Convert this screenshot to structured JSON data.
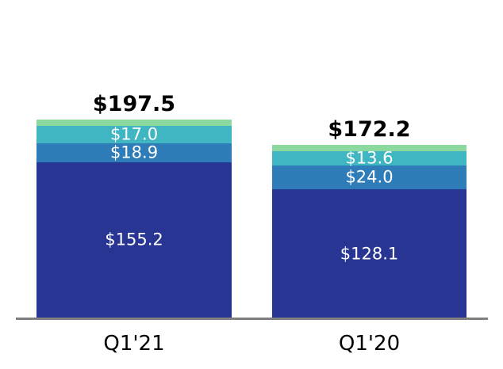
{
  "chart_data": {
    "type": "bar",
    "stacked": true,
    "title": "",
    "xlabel": "",
    "ylabel": "",
    "legend": false,
    "grid": false,
    "background_color": "#ffffff",
    "axis_line_color": "#7f7f7f",
    "total_label_color": "#000000",
    "value_label_color": "#ffffff",
    "category_label_color": "#000000",
    "ylim": [
      0,
      197.5
    ],
    "categories": [
      "Q1'21",
      "Q1'20"
    ],
    "totals": [
      197.5,
      172.2
    ],
    "total_labels": [
      "$197.5",
      "$172.2"
    ],
    "series": [
      {
        "name": "dark-blue-segment",
        "color": "#283593",
        "values": [
          155.2,
          128.1
        ],
        "value_labels": [
          "$155.2",
          "$128.1"
        ]
      },
      {
        "name": "medium-blue-segment",
        "color": "#2E7DB9",
        "values": [
          18.9,
          24.0
        ],
        "value_labels": [
          "$18.9",
          "$24.0"
        ]
      },
      {
        "name": "teal-segment",
        "color": "#3FB6C1",
        "values": [
          17.0,
          13.6
        ],
        "value_labels": [
          "$17.0",
          "$13.6"
        ]
      },
      {
        "name": "green-segment",
        "color": "#8CD9A0",
        "values": [
          6.4,
          6.5
        ],
        "value_labels": [
          "",
          ""
        ]
      }
    ]
  }
}
